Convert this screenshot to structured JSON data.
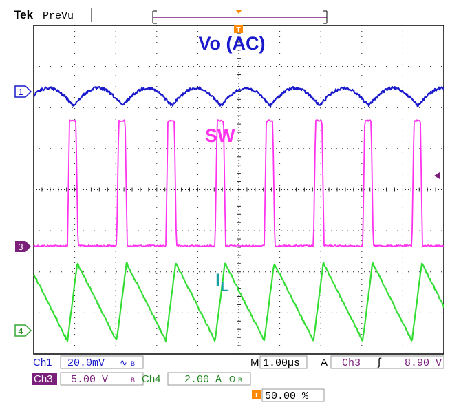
{
  "header": {
    "brand": "Tek",
    "mode": "PreVu"
  },
  "labels": {
    "vo": "Vo (AC)",
    "sw": "SW",
    "il_main": "I",
    "il_sub": "L"
  },
  "channel_markers": {
    "ch1": "1",
    "ch3": "3",
    "ch4": "4",
    "trigger": "T"
  },
  "readouts": {
    "ch1_label": "Ch1",
    "ch1_scale": "20.0mV",
    "ch1_sym": "∿",
    "ch1_bw": "B",
    "ch3_label": "Ch3",
    "ch3_scale": "5.00 V",
    "ch3_bw": "B",
    "ch4_label": "Ch4",
    "ch4_scale": "2.00 A",
    "ch4_sym": "Ω",
    "ch4_bw": "B",
    "timebase_label": "M",
    "timebase_value": "1.00µs",
    "trigger_mode": "A",
    "trigger_source": "Ch3",
    "trigger_slope": "ʃ",
    "trigger_level": "8.90 V",
    "trigger_pos_icon": "T",
    "trigger_position": "50.00 %"
  },
  "colors": {
    "ch1": "#1a1acc",
    "ch3": "#ff33ee",
    "ch4": "#33dd33",
    "grid": "#222222",
    "trigger": "#ff8800",
    "ch3_badge": "#7a1f7a"
  },
  "chart_data": {
    "type": "line",
    "x_divisions": 10,
    "y_divisions": 8,
    "time_per_div_us": 1.0,
    "period_us": 1.2,
    "duty_cycle": 0.2,
    "series": [
      {
        "name": "Vo (AC)",
        "channel": 1,
        "scale_per_div": "20.0mV",
        "shape": "ripple",
        "ripple_pp_div": 0.45
      },
      {
        "name": "SW",
        "channel": 3,
        "scale_per_div": "5.00 V",
        "shape": "square",
        "high_div": 3.05
      },
      {
        "name": "I",
        "channel": 4,
        "scale_per_div": "2.00 A",
        "shape": "triangle",
        "pp_div": 1.9
      }
    ]
  }
}
